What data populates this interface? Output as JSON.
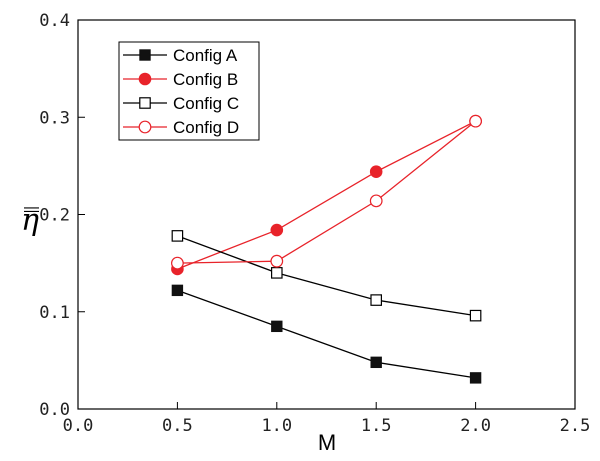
{
  "chart_data": {
    "type": "line",
    "title": "",
    "xlabel": "M",
    "ylabel": "η̿",
    "xlim": [
      0.0,
      2.5
    ],
    "ylim": [
      0.0,
      0.4
    ],
    "xticks": [
      "0.0",
      "0.5",
      "1.0",
      "1.5",
      "2.0",
      "2.5"
    ],
    "yticks": [
      "0.0",
      "0.1",
      "0.2",
      "0.3",
      "0.4"
    ],
    "x": [
      0.5,
      1.0,
      1.5,
      2.0
    ],
    "legend_position": "top-left",
    "series": [
      {
        "name": "Config A",
        "values": [
          0.122,
          0.085,
          0.048,
          0.032
        ],
        "color": "#000000",
        "marker": "square-filled"
      },
      {
        "name": "Config B",
        "values": [
          0.144,
          0.184,
          0.244,
          0.296
        ],
        "color": "#e8232a",
        "marker": "circle-filled"
      },
      {
        "name": "Config C",
        "values": [
          0.178,
          0.14,
          0.112,
          0.096
        ],
        "color": "#000000",
        "marker": "square-open"
      },
      {
        "name": "Config D",
        "values": [
          0.15,
          0.152,
          0.214,
          0.296
        ],
        "color": "#e8232a",
        "marker": "circle-open"
      }
    ]
  }
}
